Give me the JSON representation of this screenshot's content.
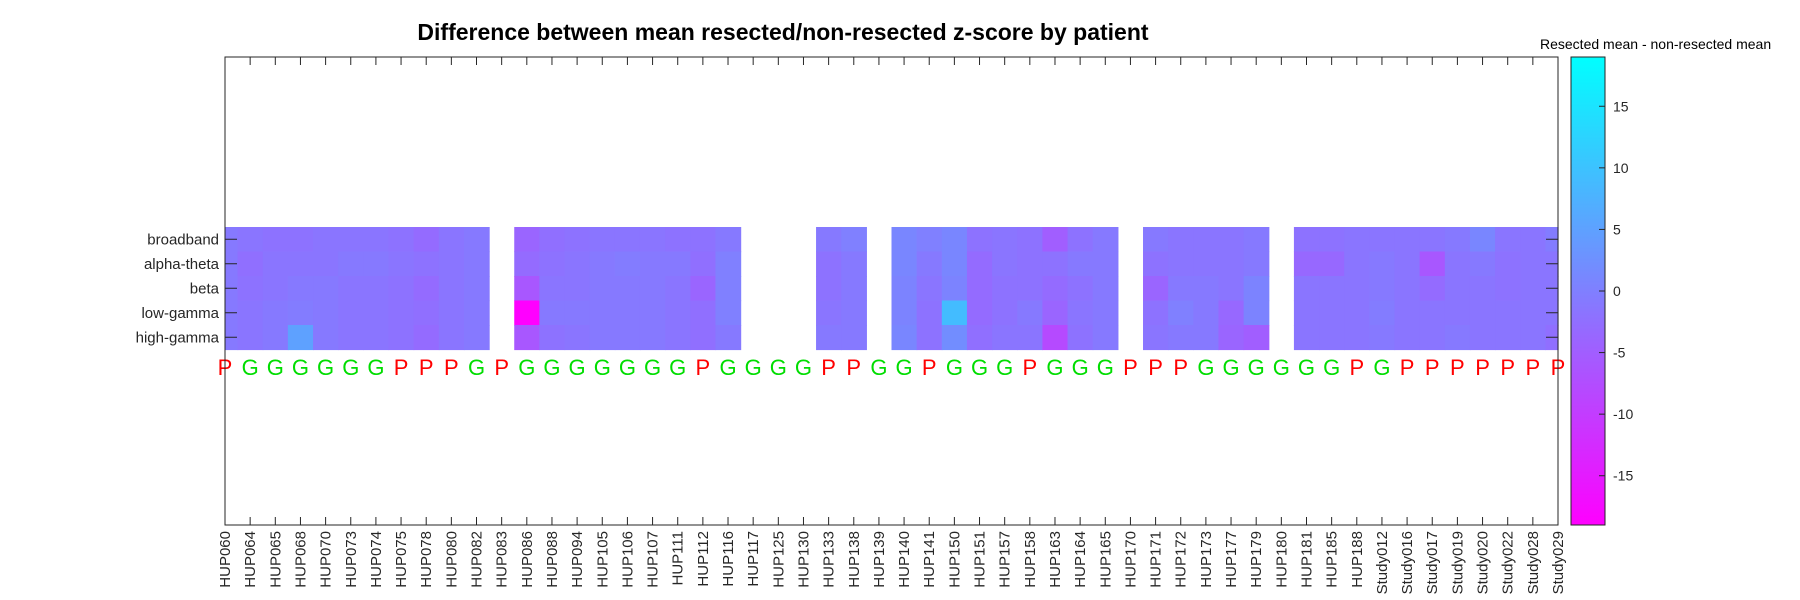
{
  "chart_data": {
    "type": "heatmap",
    "title": "Difference between mean resected/non-resected z-score by patient",
    "colorbar_label": "Resected mean - non-resected mean",
    "colormap": {
      "low": "#ff00ff",
      "high": "#00ffff"
    },
    "clim": [
      -19,
      19
    ],
    "colorbar_ticks": [
      15,
      10,
      5,
      0,
      -5,
      -10,
      -15
    ],
    "rows": [
      "broadband",
      "alpha-theta",
      "beta",
      "low-gamma",
      "high-gamma"
    ],
    "patients": [
      "HUP060",
      "HUP064",
      "HUP065",
      "HUP068",
      "HUP070",
      "HUP073",
      "HUP074",
      "HUP075",
      "HUP078",
      "HUP080",
      "HUP082",
      "HUP083",
      "HUP086",
      "HUP088",
      "HUP094",
      "HUP105",
      "HUP106",
      "HUP107",
      "HUP111",
      "HUP112",
      "HUP116",
      "HUP117",
      "HUP125",
      "HUP130",
      "HUP133",
      "HUP138",
      "HUP139",
      "HUP140",
      "HUP141",
      "HUP150",
      "HUP151",
      "HUP157",
      "HUP158",
      "HUP163",
      "HUP164",
      "HUP165",
      "HUP170",
      "HUP171",
      "HUP172",
      "HUP173",
      "HUP177",
      "HUP179",
      "HUP180",
      "HUP181",
      "HUP185",
      "HUP188",
      "Study012",
      "Study016",
      "Study017",
      "Study019",
      "Study020",
      "Study022",
      "Study028",
      "Study029"
    ],
    "outcomes": [
      "P",
      "G",
      "G",
      "G",
      "G",
      "G",
      "G",
      "P",
      "P",
      "P",
      "G",
      "P",
      "G",
      "G",
      "G",
      "G",
      "G",
      "G",
      "G",
      "P",
      "G",
      "G",
      "G",
      "G",
      "P",
      "P",
      "G",
      "G",
      "P",
      "G",
      "G",
      "G",
      "P",
      "G",
      "G",
      "G",
      "P",
      "P",
      "P",
      "G",
      "G",
      "G",
      "G",
      "G",
      "G",
      "P",
      "G",
      "P",
      "P",
      "P",
      "P",
      "P",
      "P",
      "P"
    ],
    "outcome_colors": {
      "P": "#ff0000",
      "G": "#00dd00"
    },
    "values": [
      [
        -1,
        -1.5,
        -2,
        -2,
        -1.5,
        -1.5,
        -1.5,
        -2,
        -3,
        -1.5,
        -1,
        null,
        -4,
        -2.5,
        -2,
        -1.5,
        -1.5,
        -1.5,
        -2,
        -2,
        -1,
        null,
        null,
        null,
        -1,
        0,
        null,
        1,
        0,
        1,
        -2,
        -1.5,
        -2,
        -5,
        -2,
        -1,
        null,
        -1,
        -1.5,
        -1.5,
        -1.5,
        -1,
        null,
        -2,
        -2,
        -1.5,
        -1.5,
        -1.5,
        -1.5,
        -1,
        1,
        -1.5,
        -1.5,
        -0.5
      ],
      [
        -1,
        -2.5,
        -1.5,
        -1.5,
        -1.5,
        -1,
        -1,
        -1.5,
        -2,
        -1.5,
        -1,
        null,
        -3,
        -2,
        -1.5,
        -1,
        -0.5,
        -1,
        -1,
        -2.5,
        0,
        null,
        null,
        null,
        -2,
        -1,
        null,
        1,
        -1,
        1,
        -3,
        -1.5,
        -2,
        -2,
        -1,
        -1,
        null,
        -2,
        -1.5,
        -1.5,
        -1.5,
        -1,
        null,
        -3.5,
        -3.5,
        -1.5,
        -1,
        -1.5,
        -6,
        -1.5,
        -1,
        -2,
        -1.5,
        -1.5
      ],
      [
        -1,
        -2,
        -1.5,
        -1,
        -1,
        -1.5,
        -1.5,
        -2,
        -3,
        -1.5,
        -1,
        null,
        -6,
        -1.5,
        -1.5,
        -1,
        -1,
        -1,
        -1.5,
        -4,
        0,
        null,
        null,
        null,
        -2,
        -1,
        null,
        0.5,
        -1.5,
        0.5,
        -3,
        -2,
        -2,
        -3,
        -2,
        -1,
        null,
        -4,
        -1,
        -1,
        -1.5,
        0.5,
        null,
        -1.5,
        -1.5,
        -1.5,
        -1,
        -1.5,
        -3,
        -1.5,
        -1.5,
        -2,
        -1.5,
        -1.5
      ],
      [
        -1,
        -1.5,
        -1,
        -0.5,
        -1,
        -1.5,
        -1.5,
        -2,
        -2.5,
        -1.5,
        -1,
        null,
        -19,
        -1,
        -1,
        -1,
        -1,
        -1,
        -1.5,
        -2.5,
        0,
        null,
        null,
        null,
        -1.5,
        -1,
        null,
        0.5,
        -2,
        9,
        -3,
        -2,
        -1,
        -4,
        -1.5,
        -1,
        null,
        -2,
        0,
        -1,
        -3.5,
        0.5,
        null,
        -1.5,
        -1.5,
        -1.5,
        -0.5,
        -1.5,
        -1.5,
        -1.5,
        -1.5,
        -1.5,
        -1.5,
        -1.5
      ],
      [
        -1,
        -1.5,
        -1,
        5,
        -1,
        -1.5,
        -1.5,
        -2,
        -3,
        -1.5,
        -1,
        null,
        -6,
        -2,
        -1.5,
        -1,
        -1,
        -1,
        -1.5,
        -2.5,
        -1,
        null,
        null,
        null,
        -1,
        -1,
        null,
        1,
        -2,
        2,
        -2.5,
        -1.5,
        -1.5,
        -8,
        -2,
        -1,
        null,
        -1.5,
        -1,
        -1,
        -4,
        -5,
        null,
        -1.5,
        -1.5,
        -1.5,
        -1,
        -1.5,
        -1.5,
        -1,
        -1.5,
        -1.5,
        -1.5,
        -2.5
      ]
    ]
  }
}
